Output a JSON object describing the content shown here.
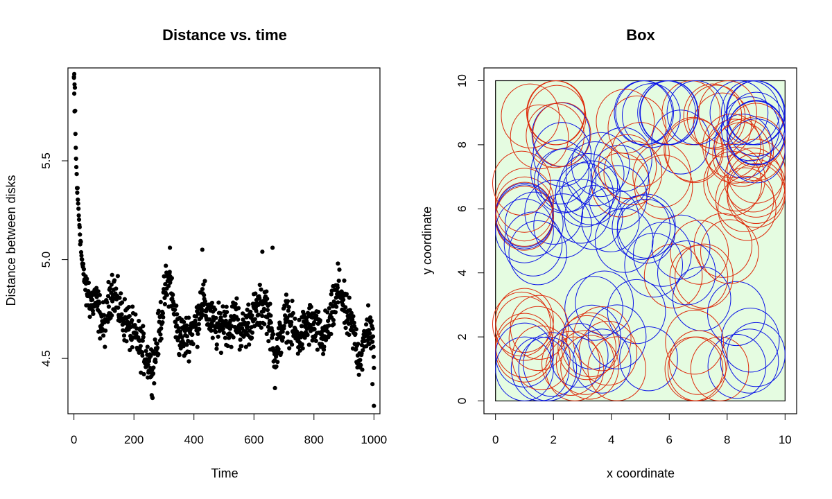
{
  "chart_data": [
    {
      "type": "scatter",
      "title": "Distance vs. time",
      "xlabel": "Time",
      "ylabel": "Distance between disks",
      "xlim": [
        -20,
        1020
      ],
      "ylim": [
        4.22,
        5.97
      ],
      "xticks": [
        "0",
        "200",
        "400",
        "600",
        "800",
        "1000"
      ],
      "xtick_values": [
        0,
        200,
        400,
        600,
        800,
        1000
      ],
      "yticks": [
        "4.5",
        "5.0",
        "5.5"
      ],
      "ytick_values": [
        4.5,
        5.0,
        5.5
      ],
      "point_color": "#000000",
      "anchors": [
        [
          0,
          5.92
        ],
        [
          3,
          5.85
        ],
        [
          6,
          5.55
        ],
        [
          10,
          5.38
        ],
        [
          15,
          5.25
        ],
        [
          20,
          5.15
        ],
        [
          25,
          5.02
        ],
        [
          30,
          4.95
        ],
        [
          40,
          4.85
        ],
        [
          50,
          4.82
        ],
        [
          60,
          4.78
        ],
        [
          70,
          4.8
        ],
        [
          80,
          4.75
        ],
        [
          90,
          4.7
        ],
        [
          100,
          4.65
        ],
        [
          110,
          4.72
        ],
        [
          120,
          4.82
        ],
        [
          130,
          4.86
        ],
        [
          140,
          4.8
        ],
        [
          150,
          4.75
        ],
        [
          160,
          4.72
        ],
        [
          175,
          4.68
        ],
        [
          190,
          4.64
        ],
        [
          210,
          4.6
        ],
        [
          230,
          4.54
        ],
        [
          245,
          4.5
        ],
        [
          260,
          4.45
        ],
        [
          275,
          4.55
        ],
        [
          290,
          4.7
        ],
        [
          305,
          4.85
        ],
        [
          320,
          4.9
        ],
        [
          335,
          4.72
        ],
        [
          350,
          4.62
        ],
        [
          370,
          4.6
        ],
        [
          390,
          4.64
        ],
        [
          410,
          4.68
        ],
        [
          425,
          4.8
        ],
        [
          440,
          4.75
        ],
        [
          460,
          4.68
        ],
        [
          480,
          4.64
        ],
        [
          500,
          4.7
        ],
        [
          520,
          4.66
        ],
        [
          540,
          4.72
        ],
        [
          560,
          4.62
        ],
        [
          580,
          4.68
        ],
        [
          600,
          4.72
        ],
        [
          620,
          4.75
        ],
        [
          640,
          4.78
        ],
        [
          660,
          4.6
        ],
        [
          675,
          4.52
        ],
        [
          690,
          4.62
        ],
        [
          710,
          4.72
        ],
        [
          730,
          4.64
        ],
        [
          750,
          4.6
        ],
        [
          770,
          4.65
        ],
        [
          790,
          4.68
        ],
        [
          810,
          4.63
        ],
        [
          830,
          4.6
        ],
        [
          850,
          4.66
        ],
        [
          870,
          4.78
        ],
        [
          890,
          4.85
        ],
        [
          905,
          4.72
        ],
        [
          920,
          4.68
        ],
        [
          935,
          4.62
        ],
        [
          950,
          4.5
        ],
        [
          965,
          4.55
        ],
        [
          980,
          4.68
        ],
        [
          1000,
          4.55
        ]
      ],
      "outliers": [
        [
          0,
          5.92
        ],
        [
          1,
          5.84
        ],
        [
          2,
          5.75
        ],
        [
          320,
          5.06
        ],
        [
          428,
          5.05
        ],
        [
          662,
          5.06
        ],
        [
          628,
          5.04
        ],
        [
          880,
          4.98
        ],
        [
          262,
          4.3
        ],
        [
          670,
          4.35
        ],
        [
          1000,
          4.26
        ],
        [
          995,
          4.37
        ]
      ],
      "n_points": 1000
    },
    {
      "type": "scatter",
      "title": "Box",
      "xlabel": "x coordinate",
      "ylabel": "y coordinate",
      "xlim": [
        -0.4,
        10.4
      ],
      "ylim": [
        -0.4,
        10.4
      ],
      "xticks": [
        "0",
        "2",
        "4",
        "6",
        "8",
        "10"
      ],
      "xtick_values": [
        0,
        2,
        4,
        6,
        8,
        10
      ],
      "yticks": [
        "0",
        "2",
        "4",
        "6",
        "8",
        "10"
      ],
      "ytick_values": [
        0,
        2,
        4,
        6,
        8,
        10
      ],
      "box": [
        0,
        10,
        0,
        10
      ],
      "box_fill": "#e5fce1",
      "disk_radius": 1.0,
      "series": [
        {
          "color": "#dd2a0a",
          "centers": [
            [
              1.2,
              8.9
            ],
            [
              7.5,
              8.9
            ],
            [
              0.9,
              6.8
            ],
            [
              8.9,
              6.9
            ],
            [
              5.0,
              7.7
            ],
            [
              3.1,
              1.2
            ],
            [
              7.0,
              1.2
            ],
            [
              0.9,
              2.4
            ],
            [
              7.2,
              3.9
            ],
            [
              8.5,
              7.7
            ]
          ]
        },
        {
          "color": "#0a14e6",
          "centers": [
            [
              1.8,
              1.0
            ],
            [
              6.0,
              9.0
            ],
            [
              8.8,
              1.9
            ],
            [
              4.2,
              2.0
            ],
            [
              3.3,
              6.5
            ],
            [
              6.6,
              4.0
            ],
            [
              1.3,
              4.9
            ],
            [
              8.8,
              8.5
            ],
            [
              2.3,
              7.7
            ],
            [
              5.2,
              5.3
            ]
          ]
        }
      ]
    }
  ]
}
